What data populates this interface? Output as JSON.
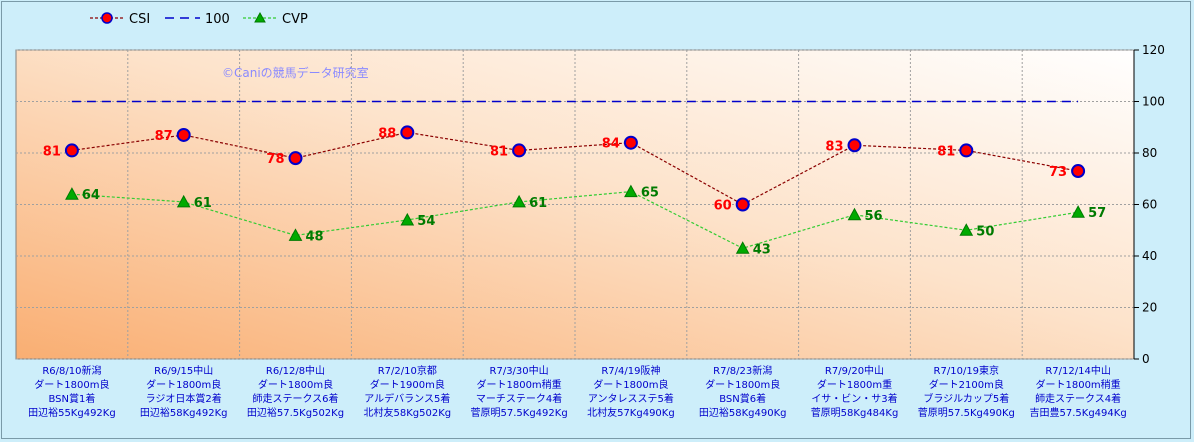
{
  "watermark": "©Caniの競馬データ研究室",
  "chart_data": {
    "type": "line",
    "categories": [
      [
        "R6/8/10新潟",
        "ダート1800m良",
        "BSN賞1着",
        "田辺裕55Kg492Kg"
      ],
      [
        "R6/9/15中山",
        "ダート1800m良",
        "ラジオ日本賞2着",
        "田辺裕58Kg492Kg"
      ],
      [
        "R6/12/8中山",
        "ダート1800m良",
        "師走ステークス6着",
        "田辺裕57.5Kg502Kg"
      ],
      [
        "R7/2/10京都",
        "ダート1900m良",
        "アルデバランス5着",
        "北村友58Kg502Kg"
      ],
      [
        "R7/3/30中山",
        "ダート1800m稍重",
        "マーチステーク4着",
        "菅原明57.5Kg492Kg"
      ],
      [
        "R7/4/19阪神",
        "ダート1800m良",
        "アンタレスステ5着",
        "北村友57Kg490Kg"
      ],
      [
        "R7/8/23新潟",
        "ダート1800m良",
        "BSN賞6着",
        "田辺裕58Kg490Kg"
      ],
      [
        "R7/9/20中山",
        "ダート1800m重",
        "イサ・ビン・サ3着",
        "菅原明58Kg484Kg"
      ],
      [
        "R7/10/19東京",
        "ダート2100m良",
        "ブラジルカップ5着",
        "菅原明57.5Kg490Kg"
      ],
      [
        "R7/12/14中山",
        "ダート1800m稍重",
        "師走ステークス4着",
        "吉田豊57.5Kg494Kg"
      ]
    ],
    "series": [
      {
        "name": "CSI",
        "values": [
          81,
          87,
          78,
          88,
          81,
          84,
          60,
          83,
          81,
          73
        ],
        "color": "#8b0000",
        "marker": "circle",
        "marker_fill": "#ff0000",
        "marker_stroke": "#0000cc",
        "line_style": "dotted",
        "label_color": "#ff0000"
      },
      {
        "name": "100",
        "values": [
          100,
          100,
          100,
          100,
          100,
          100,
          100,
          100,
          100,
          100
        ],
        "color": "#0000cc",
        "marker": "none",
        "line_style": "dashed"
      },
      {
        "name": "CVP",
        "values": [
          64,
          61,
          48,
          54,
          61,
          65,
          43,
          56,
          50,
          57
        ],
        "color": "#33cc33",
        "marker": "triangle",
        "marker_fill": "#00aa00",
        "line_style": "dotted",
        "label_color": "#007a00"
      }
    ],
    "y_ticks": [
      "0",
      "20",
      "40",
      "60",
      "80",
      "100",
      "120"
    ],
    "ylim": [
      0,
      120
    ],
    "y_axis_side": "right",
    "grid": true,
    "legend_position": "top-left",
    "plot_background": "gradient white to orange"
  }
}
